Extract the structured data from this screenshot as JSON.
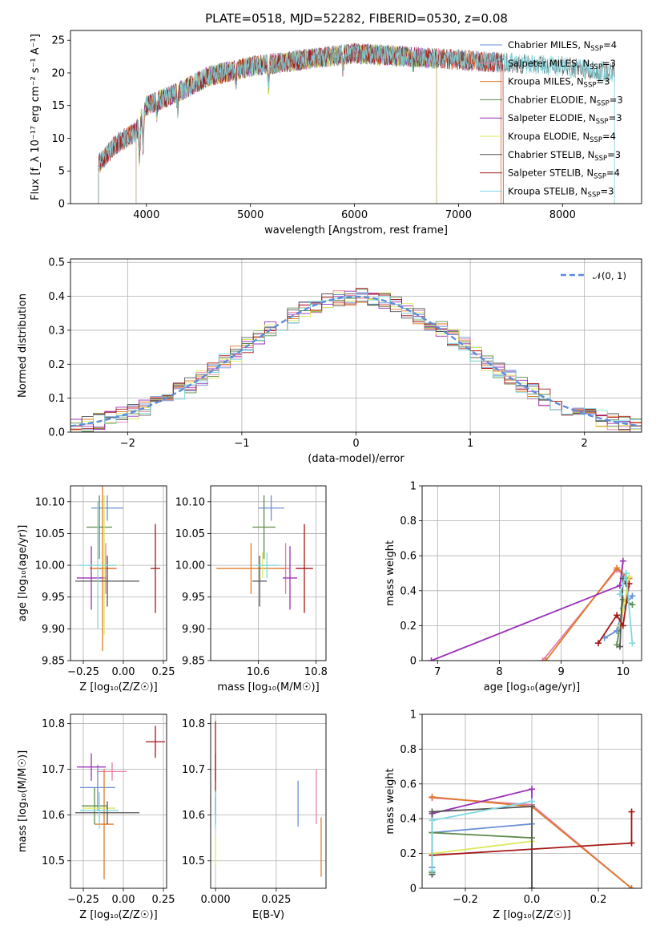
{
  "title": "PLATE=0518, MJD=52282, FIBERID=0530, z=0.08",
  "colors": {
    "Chabrier MILES": "#6a8fd6",
    "Salpeter MILES": "#e57ea8",
    "Kroupa MILES": "#e07b28",
    "Chabrier ELODIE": "#5d8a4c",
    "Salpeter ELODIE": "#9b30b8",
    "Kroupa ELODIE": "#dde85a",
    "Chabrier STELIB": "#555555",
    "Salpeter STELIB": "#a81616",
    "Kroupa STELIB": "#7fd8e0",
    "gaussian": "#5b8dd9"
  },
  "chart_data": [
    {
      "id": "spectrum",
      "type": "line",
      "xlabel": "wavelength [Angstrom, rest frame]",
      "ylabel": "Flux [f_λ 10⁻¹⁷ erg cm⁻² s⁻¹ A⁻¹]",
      "xlim": [
        3270,
        8760
      ],
      "ylim": [
        0,
        26.5
      ],
      "xticks": [
        4000,
        5000,
        6000,
        7000,
        8000
      ],
      "yticks": [
        0,
        5,
        10,
        15,
        20,
        25
      ],
      "grid": false,
      "legend_position": "right",
      "series": [
        {
          "name": "Chabrier MILES, N_SSP=4",
          "label_main": "Chabrier MILES, N",
          "label_sub": "SSP",
          "label_tail": "=4",
          "x_range": [
            3540,
            7410
          ]
        },
        {
          "name": "Salpeter MILES, N_SSP=3",
          "label_main": "Salpeter MILES, N",
          "label_sub": "SSP",
          "label_tail": "=3",
          "x_range": [
            3540,
            7410
          ]
        },
        {
          "name": "Kroupa MILES, N_SSP=3",
          "label_main": "Kroupa MILES, N",
          "label_sub": "SSP",
          "label_tail": "=3",
          "x_range": [
            3540,
            7410
          ]
        },
        {
          "name": "Chabrier ELODIE, N_SSP=3",
          "label_main": "Chabrier ELODIE, N",
          "label_sub": "SSP",
          "label_tail": "=3",
          "x_range": [
            3900,
            6790
          ]
        },
        {
          "name": "Salpeter ELODIE, N_SSP=3",
          "label_main": "Salpeter ELODIE, N",
          "label_sub": "SSP",
          "label_tail": "=3",
          "x_range": [
            3900,
            6790
          ]
        },
        {
          "name": "Kroupa ELODIE, N_SSP=4",
          "label_main": "Kroupa ELODIE, N",
          "label_sub": "SSP",
          "label_tail": "=4",
          "x_range": [
            3900,
            6790
          ]
        },
        {
          "name": "Chabrier STELIB, N_SSP=3",
          "label_main": "Chabrier STELIB, N",
          "label_sub": "SSP",
          "label_tail": "=3",
          "x_range": [
            3540,
            8500
          ]
        },
        {
          "name": "Salpeter STELIB, N_SSP=4",
          "label_main": "Salpeter STELIB, N",
          "label_sub": "SSP",
          "label_tail": "=4",
          "x_range": [
            3540,
            7430
          ]
        },
        {
          "name": "Kroupa STELIB, N_SSP=3",
          "label_main": "Kroupa STELIB, N",
          "label_sub": "SSP",
          "label_tail": "=3",
          "x_range": [
            3540,
            8500
          ]
        }
      ],
      "continuum_knots": [
        [
          3540,
          6
        ],
        [
          3700,
          9
        ],
        [
          3900,
          11
        ],
        [
          4000,
          15
        ],
        [
          4300,
          17
        ],
        [
          4600,
          19.5
        ],
        [
          5000,
          21
        ],
        [
          5500,
          22
        ],
        [
          6000,
          23
        ],
        [
          6500,
          22.5
        ],
        [
          7000,
          22
        ],
        [
          7500,
          21.5
        ],
        [
          8000,
          21
        ],
        [
          8500,
          20
        ]
      ]
    },
    {
      "id": "residuals",
      "type": "step-histogram",
      "xlabel": "(data-model)/error",
      "ylabel": "Normed distribution",
      "xlim": [
        -2.5,
        2.5
      ],
      "ylim": [
        0,
        0.51
      ],
      "xticks": [
        -2,
        -1,
        0,
        1,
        2
      ],
      "yticks": [
        0.0,
        0.1,
        0.2,
        0.3,
        0.4,
        0.5
      ],
      "grid": true,
      "bin_width": 0.1,
      "legend": {
        "label": "𝒩(0, 1)",
        "position": "top-right"
      },
      "reference_curve": "normal(0,1)"
    },
    {
      "id": "age-vs-Z",
      "type": "errorbar",
      "xlabel": "Z [log₁₀(Z/Z☉)]",
      "ylabel": "age  [log₁₀(age/yr)]",
      "xlim": [
        -0.33,
        0.27
      ],
      "ylim": [
        9.85,
        10.125
      ],
      "xticks": [
        -0.25,
        0.0,
        0.25
      ],
      "yticks": [
        9.85,
        9.9,
        9.95,
        10.0,
        10.05,
        10.1
      ],
      "grid": true,
      "points": [
        {
          "series": "Chabrier MILES",
          "x": -0.1,
          "xerr": 0.1,
          "y": 10.09,
          "yerr": 0.02
        },
        {
          "series": "Salpeter MILES",
          "x": -0.11,
          "xerr": 0.07,
          "y": 9.995,
          "yerr": 0.04
        },
        {
          "series": "Kroupa MILES",
          "x": -0.13,
          "xerr": 0.08,
          "y": 9.995,
          "yerr": 0.13
        },
        {
          "series": "Chabrier ELODIE",
          "x": -0.15,
          "xerr": 0.08,
          "y": 10.06,
          "yerr": 0.05
        },
        {
          "series": "Salpeter ELODIE",
          "x": -0.2,
          "xerr": 0.09,
          "y": 9.98,
          "yerr": 0.05
        },
        {
          "series": "Kroupa ELODIE",
          "x": -0.12,
          "xerr": 0.1,
          "y": 10.0,
          "yerr": 0.11
        },
        {
          "series": "Chabrier STELIB",
          "x": -0.1,
          "xerr": 0.2,
          "y": 9.975,
          "yerr": 0.04
        },
        {
          "series": "Salpeter STELIB",
          "x": 0.2,
          "xerr": 0.03,
          "y": 9.995,
          "yerr": 0.07
        },
        {
          "series": "Kroupa STELIB",
          "x": -0.16,
          "xerr": 0.12,
          "y": 10.0,
          "yerr": 0.1
        }
      ]
    },
    {
      "id": "age-vs-mass",
      "type": "errorbar",
      "xlabel": "mass [log₁₀(M/M☉)]",
      "ylabel": "",
      "xlim": [
        10.435,
        10.835
      ],
      "ylim": [
        9.85,
        10.125
      ],
      "xticks": [
        10.6,
        10.8
      ],
      "yticks": [
        9.85,
        9.9,
        9.95,
        10.0,
        10.05,
        10.1
      ],
      "grid": true,
      "points": [
        {
          "series": "Chabrier MILES",
          "x": 10.645,
          "xerr": 0.045,
          "y": 10.09,
          "yerr": 0.02
        },
        {
          "series": "Salpeter MILES",
          "x": 10.695,
          "xerr": 0.015,
          "y": 9.995,
          "yerr": 0.04
        },
        {
          "series": "Kroupa MILES",
          "x": 10.575,
          "xerr": 0.12,
          "y": 9.995,
          "yerr": 0.04
        },
        {
          "series": "Chabrier ELODIE",
          "x": 10.62,
          "xerr": 0.04,
          "y": 10.06,
          "yerr": 0.05
        },
        {
          "series": "Salpeter ELODIE",
          "x": 10.71,
          "xerr": 0.025,
          "y": 9.98,
          "yerr": 0.05
        },
        {
          "series": "Kroupa ELODIE",
          "x": 10.615,
          "xerr": 0.025,
          "y": 10.0,
          "yerr": 0.02
        },
        {
          "series": "Chabrier STELIB",
          "x": 10.605,
          "xerr": 0.025,
          "y": 9.975,
          "yerr": 0.04
        },
        {
          "series": "Salpeter STELIB",
          "x": 10.76,
          "xerr": 0.03,
          "y": 9.995,
          "yerr": 0.07
        },
        {
          "series": "Kroupa STELIB",
          "x": 10.63,
          "xerr": 0.04,
          "y": 10.0,
          "yerr": 0.02
        }
      ]
    },
    {
      "id": "weight-vs-age",
      "type": "line",
      "xlabel": "age  [log₁₀(age/yr)]",
      "ylabel": "mass weight",
      "xlim": [
        6.75,
        10.3
      ],
      "ylim": [
        0,
        1.0
      ],
      "xticks": [
        7,
        8,
        9,
        10
      ],
      "yticks": [
        0.0,
        0.2,
        0.4,
        0.6,
        0.8,
        1.0
      ],
      "grid": true,
      "series": [
        {
          "name": "Chabrier MILES",
          "x": [
            9.7,
            9.9,
            10.0,
            10.15
          ],
          "y": [
            0.13,
            0.17,
            0.3,
            0.37
          ]
        },
        {
          "name": "Salpeter MILES",
          "x": [
            8.7,
            9.9,
            10.05
          ],
          "y": [
            0.0,
            0.52,
            0.48
          ]
        },
        {
          "name": "Kroupa MILES",
          "x": [
            8.75,
            9.9,
            10.1
          ],
          "y": [
            0.0,
            0.53,
            0.47
          ]
        },
        {
          "name": "Chabrier ELODIE",
          "x": [
            9.9,
            9.95,
            10.0,
            10.15
          ],
          "y": [
            0.09,
            0.2,
            0.35,
            0.32
          ]
        },
        {
          "name": "Salpeter ELODIE",
          "x": [
            6.9,
            9.95,
            10.0
          ],
          "y": [
            0.0,
            0.43,
            0.57
          ]
        },
        {
          "name": "Kroupa ELODIE",
          "x": [
            9.95,
            10.0,
            10.1
          ],
          "y": [
            0.2,
            0.29,
            0.48
          ]
        },
        {
          "name": "Chabrier STELIB",
          "x": [
            9.95,
            10.0,
            10.05
          ],
          "y": [
            0.08,
            0.47,
            0.44
          ]
        },
        {
          "name": "Salpeter STELIB",
          "x": [
            9.6,
            9.9,
            10.0,
            10.1
          ],
          "y": [
            0.1,
            0.26,
            0.2,
            0.44
          ]
        },
        {
          "name": "Kroupa STELIB",
          "x": [
            9.95,
            10.05,
            10.15
          ],
          "y": [
            0.38,
            0.5,
            0.1
          ]
        }
      ]
    },
    {
      "id": "mass-vs-Z",
      "type": "errorbar",
      "xlabel": "Z [log₁₀(Z/Z☉)]",
      "ylabel": "mass [log₁₀(M/M☉)]",
      "xlim": [
        -0.33,
        0.27
      ],
      "ylim": [
        10.44,
        10.82
      ],
      "xticks": [
        -0.25,
        0.0,
        0.25
      ],
      "yticks": [
        10.5,
        10.6,
        10.7,
        10.8
      ],
      "grid": true,
      "points": [
        {
          "series": "Chabrier MILES",
          "x": -0.16,
          "xerr": 0.11,
          "y": 10.66,
          "yerr": 0.05
        },
        {
          "series": "Salpeter MILES",
          "x": -0.07,
          "xerr": 0.09,
          "y": 10.695,
          "yerr": 0.02
        },
        {
          "series": "Kroupa MILES",
          "x": -0.12,
          "xerr": 0.06,
          "y": 10.58,
          "yerr": 0.12
        },
        {
          "series": "Chabrier ELODIE",
          "x": -0.18,
          "xerr": 0.08,
          "y": 10.62,
          "yerr": 0.04
        },
        {
          "series": "Salpeter ELODIE",
          "x": -0.2,
          "xerr": 0.09,
          "y": 10.705,
          "yerr": 0.03
        },
        {
          "series": "Kroupa ELODIE",
          "x": -0.15,
          "xerr": 0.1,
          "y": 10.615,
          "yerr": 0.025
        },
        {
          "series": "Chabrier STELIB",
          "x": -0.1,
          "xerr": 0.2,
          "y": 10.605,
          "yerr": 0.025
        },
        {
          "series": "Salpeter STELIB",
          "x": 0.2,
          "xerr": 0.06,
          "y": 10.76,
          "yerr": 0.035
        },
        {
          "series": "Kroupa STELIB",
          "x": -0.15,
          "xerr": 0.12,
          "y": 10.61,
          "yerr": 0.04
        }
      ]
    },
    {
      "id": "mass-vs-ebv",
      "type": "errorbar",
      "xlabel": "E(B-V)",
      "ylabel": "",
      "xlim": [
        -0.002,
        0.0455
      ],
      "ylim": [
        10.44,
        10.82
      ],
      "xticks": [
        0.0,
        0.025
      ],
      "yticks": [
        10.5,
        10.6,
        10.7,
        10.8
      ],
      "grid": true,
      "points": [
        {
          "series": "Chabrier MILES",
          "x": 0.034,
          "xerr": 0,
          "y": 10.625,
          "yerr": 0.05
        },
        {
          "series": "Salpeter MILES",
          "x": 0.0415,
          "xerr": 0,
          "y": 10.64,
          "yerr": 0.06
        },
        {
          "series": "Kroupa MILES",
          "x": 0.0435,
          "xerr": 0,
          "y": 10.53,
          "yerr": 0.065
        },
        {
          "series": "Chabrier ELODIE",
          "x": 0.0,
          "xerr": 0,
          "y": 10.62,
          "yerr": 0.04
        },
        {
          "series": "Salpeter ELODIE",
          "x": 0.0,
          "xerr": 0,
          "y": 10.705,
          "yerr": 0.03
        },
        {
          "series": "Kroupa ELODIE",
          "x": 0.0,
          "xerr": 0,
          "y": 10.52,
          "yerr": 0.03
        },
        {
          "series": "Chabrier STELIB",
          "x": 0.0,
          "xerr": 0,
          "y": 10.62,
          "yerr": 0.02
        },
        {
          "series": "Salpeter STELIB",
          "x": 0.0,
          "xerr": 0,
          "y": 10.73,
          "yerr": 0.075
        },
        {
          "series": "Kroupa STELIB",
          "x": 0.0,
          "xerr": 0,
          "y": 10.61,
          "yerr": 0.04
        }
      ]
    },
    {
      "id": "weight-vs-Z",
      "type": "line",
      "xlabel": "Z [log₁₀(Z/Z☉)]",
      "ylabel": "mass weight",
      "xlim": [
        -0.33,
        0.33
      ],
      "ylim": [
        0,
        1.0
      ],
      "xticks": [
        -0.2,
        0.0,
        0.2
      ],
      "yticks": [
        0.0,
        0.2,
        0.4,
        0.6,
        0.8,
        1.0
      ],
      "grid": true,
      "series": [
        {
          "name": "Chabrier MILES",
          "x": [
            -0.3,
            -0.3,
            0.0,
            0.0
          ],
          "y": [
            0.12,
            0.32,
            0.37,
            0.0
          ]
        },
        {
          "name": "Salpeter MILES",
          "x": [
            -0.3,
            0.0,
            0.3
          ],
          "y": [
            0.52,
            0.48,
            0.0
          ]
        },
        {
          "name": "Kroupa MILES",
          "x": [
            -0.3,
            0.0,
            0.3
          ],
          "y": [
            0.525,
            0.47,
            0.0
          ]
        },
        {
          "name": "Chabrier ELODIE",
          "x": [
            -0.3,
            -0.3,
            0.0
          ],
          "y": [
            0.09,
            0.32,
            0.29
          ]
        },
        {
          "name": "Salpeter ELODIE",
          "x": [
            -0.3,
            0.0,
            0.0
          ],
          "y": [
            0.43,
            0.57,
            0.0
          ]
        },
        {
          "name": "Kroupa ELODIE",
          "x": [
            -0.3,
            0.0,
            0.0
          ],
          "y": [
            0.2,
            0.27,
            0.47
          ]
        },
        {
          "name": "Chabrier STELIB",
          "x": [
            -0.3,
            -0.3,
            0.0,
            0.0
          ],
          "y": [
            0.08,
            0.44,
            0.47,
            0.0
          ]
        },
        {
          "name": "Salpeter STELIB",
          "x": [
            -0.3,
            0.3,
            0.3
          ],
          "y": [
            0.19,
            0.26,
            0.44
          ]
        },
        {
          "name": "Kroupa STELIB",
          "x": [
            -0.3,
            -0.3,
            0.0
          ],
          "y": [
            0.1,
            0.39,
            0.5
          ]
        }
      ]
    }
  ]
}
